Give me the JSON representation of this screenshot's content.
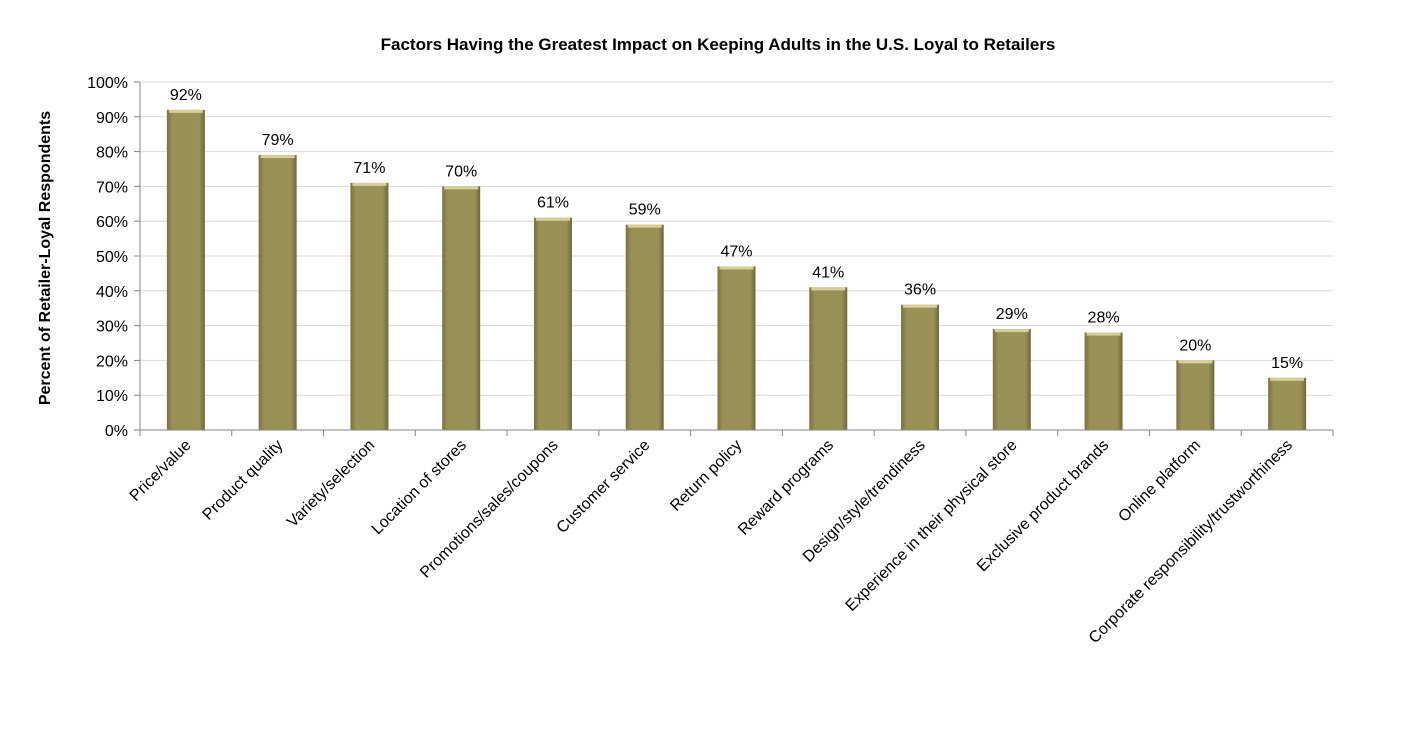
{
  "chart_data": {
    "type": "bar",
    "title": "Factors Having the Greatest Impact on Keeping Adults in the U.S. Loyal to Retailers",
    "xlabel": "",
    "ylabel": "Percent of Retailer-Loyal Respondents",
    "ylim": [
      0,
      100
    ],
    "yticks": [
      0,
      10,
      20,
      30,
      40,
      50,
      60,
      70,
      80,
      90,
      100
    ],
    "ytick_suffix": "%",
    "grid": true,
    "legend": "none",
    "bar_color": "#9a9157",
    "categories": [
      "Price/value",
      "Product quality",
      "Variety/selection",
      "Location of stores",
      "Promotions/sales/coupons",
      "Customer service",
      "Return policy",
      "Reward programs",
      "Design/style/trendiness",
      "Experience in their physical store",
      "Exclusive product brands",
      "Online platform",
      "Corporate responsibility/trustworthiness"
    ],
    "values": [
      92,
      79,
      71,
      70,
      61,
      59,
      47,
      41,
      36,
      29,
      28,
      20,
      15
    ],
    "data_labels": [
      "92%",
      "79%",
      "71%",
      "70%",
      "61%",
      "59%",
      "47%",
      "41%",
      "36%",
      "29%",
      "28%",
      "20%",
      "15%"
    ]
  }
}
